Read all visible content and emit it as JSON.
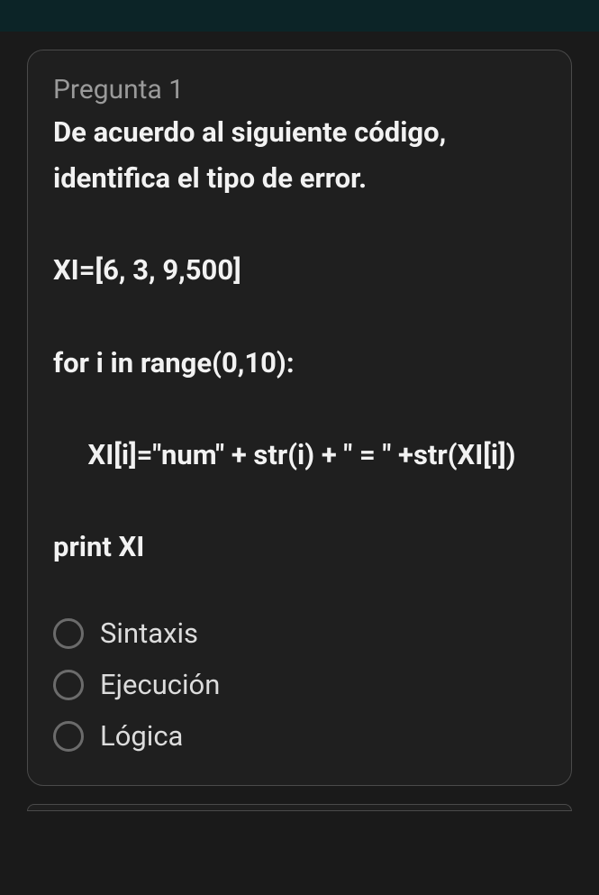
{
  "topbar": {
    "background": "#0c2427"
  },
  "question": {
    "label": "Pregunta 1",
    "body": "De acuerdo al siguiente código, identifica el tipo de error.\n\nXI=[6, 3, 9,500]\n\nfor i in range(0,10):\n\n     XI[i]=\"num\" + str(i) + \" = \" +str(XI[i])\n\nprint XI",
    "options": [
      {
        "label": "Sintaxis"
      },
      {
        "label": "Ejecución"
      },
      {
        "label": "Lógica"
      }
    ]
  },
  "colors": {
    "page_bg": "#1a1a1a",
    "card_bg": "#1f1f1f",
    "card_border": "#4a4a4a",
    "label_muted": "#9a9a9a",
    "text": "#f2f2f2",
    "option_text": "#dcdcdc",
    "radio_border": "#6b6b6b"
  }
}
